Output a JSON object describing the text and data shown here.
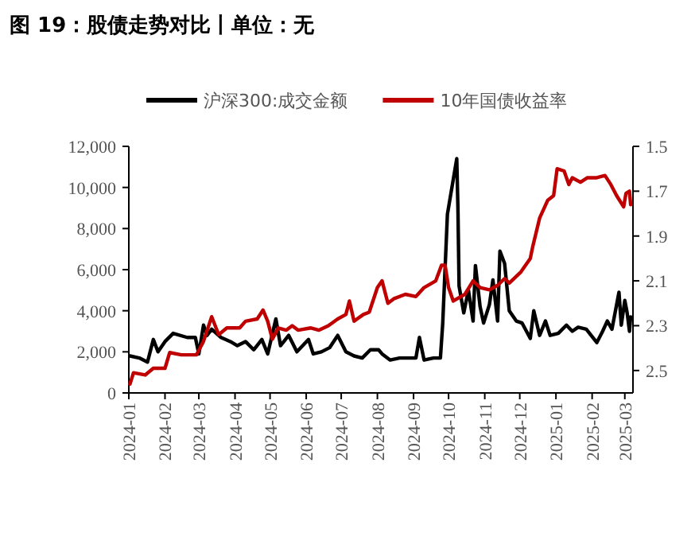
{
  "chart_data": {
    "type": "line",
    "title": "图 19：股债走势对比丨单位：无",
    "legend": "top",
    "grid": false,
    "xlim": [
      "2024-01-01",
      "2025-03-08"
    ],
    "xticks": [
      "2024-01",
      "2024-02",
      "2024-03",
      "2024-04",
      "2024-05",
      "2024-06",
      "2024-07",
      "2024-08",
      "2024-09",
      "2024-10",
      "2024-11",
      "2024-12",
      "2025-01",
      "2025-02",
      "2025-03"
    ],
    "ylim": [
      0,
      12000
    ],
    "yticks": [
      0,
      {
        "value": 2000,
        "label": "2,000"
      },
      {
        "value": 4000,
        "label": "4,000"
      },
      {
        "value": 6000,
        "label": "6,000"
      },
      {
        "value": 8000,
        "label": "8,000"
      },
      {
        "value": 10000,
        "label": "10,000"
      },
      {
        "value": 12000,
        "label": "12,000"
      }
    ],
    "y2lim": [
      2.6,
      1.5
    ],
    "y2ticks": [
      1.5,
      1.7,
      1.9,
      2.1,
      2.3,
      2.5
    ],
    "series": [
      {
        "name": "沪深300:成交金额",
        "color": "#000000",
        "x": [
          "2024-01-02",
          "2024-01-10",
          "2024-01-17",
          "2024-01-22",
          "2024-01-26",
          "2024-02-01",
          "2024-02-08",
          "2024-02-20",
          "2024-02-27",
          "2024-03-01",
          "2024-03-05",
          "2024-03-08",
          "2024-03-12",
          "2024-03-20",
          "2024-03-28",
          "2024-04-03",
          "2024-04-10",
          "2024-04-17",
          "2024-04-24",
          "2024-04-29",
          "2024-05-06",
          "2024-05-10",
          "2024-05-17",
          "2024-05-24",
          "2024-06-03",
          "2024-06-07",
          "2024-06-14",
          "2024-06-21",
          "2024-06-28",
          "2024-07-05",
          "2024-07-12",
          "2024-07-19",
          "2024-07-26",
          "2024-08-02",
          "2024-08-05",
          "2024-08-12",
          "2024-08-20",
          "2024-08-28",
          "2024-09-03",
          "2024-09-06",
          "2024-09-10",
          "2024-09-18",
          "2024-09-24",
          "2024-09-26",
          "2024-09-30",
          "2024-10-08",
          "2024-10-09",
          "2024-10-10",
          "2024-10-14",
          "2024-10-18",
          "2024-10-22",
          "2024-10-24",
          "2024-10-28",
          "2024-10-31",
          "2024-11-05",
          "2024-11-08",
          "2024-11-12",
          "2024-11-14",
          "2024-11-18",
          "2024-11-22",
          "2024-11-28",
          "2024-12-03",
          "2024-12-10",
          "2024-12-13",
          "2024-12-18",
          "2024-12-23",
          "2024-12-27",
          "2025-01-03",
          "2025-01-10",
          "2025-01-15",
          "2025-01-20",
          "2025-01-27",
          "2025-02-05",
          "2025-02-10",
          "2025-02-14",
          "2025-02-18",
          "2025-02-24",
          "2025-02-26",
          "2025-03-01",
          "2025-03-03",
          "2025-03-05",
          "2025-03-06"
        ],
        "values": [
          1800,
          1700,
          1500,
          2600,
          2000,
          2500,
          2900,
          2700,
          2700,
          1900,
          3300,
          2800,
          3100,
          2700,
          2500,
          2300,
          2500,
          2100,
          2600,
          1900,
          3600,
          2300,
          2800,
          2000,
          2600,
          1900,
          2000,
          2200,
          2800,
          2000,
          1800,
          1700,
          2100,
          2100,
          1900,
          1600,
          1700,
          1700,
          1700,
          2700,
          1600,
          1700,
          1700,
          3400,
          8700,
          11400,
          9000,
          5200,
          3900,
          5000,
          3500,
          6200,
          4200,
          3400,
          4300,
          5500,
          3500,
          6900,
          6300,
          4000,
          3500,
          3400,
          2650,
          4000,
          2800,
          3500,
          2800,
          2900,
          3300,
          3000,
          3200,
          3100,
          2450,
          3000,
          3500,
          3100,
          4900,
          3300,
          4500,
          3900,
          3000,
          3700
        ]
      },
      {
        "name": "10年国债收益率",
        "color": "#c00000",
        "axis": "y2",
        "x": [
          "2024-01-02",
          "2024-01-05",
          "2024-01-15",
          "2024-01-22",
          "2024-02-01",
          "2024-02-05",
          "2024-02-15",
          "2024-02-28",
          "2024-03-05",
          "2024-03-12",
          "2024-03-18",
          "2024-03-25",
          "2024-04-05",
          "2024-04-10",
          "2024-04-20",
          "2024-04-25",
          "2024-04-29",
          "2024-05-03",
          "2024-05-08",
          "2024-05-15",
          "2024-05-20",
          "2024-05-25",
          "2024-06-05",
          "2024-06-12",
          "2024-06-20",
          "2024-06-28",
          "2024-07-05",
          "2024-07-08",
          "2024-07-12",
          "2024-07-20",
          "2024-07-25",
          "2024-08-01",
          "2024-08-05",
          "2024-08-10",
          "2024-08-15",
          "2024-08-25",
          "2024-09-03",
          "2024-09-10",
          "2024-09-20",
          "2024-09-25",
          "2024-09-28",
          "2024-10-01",
          "2024-10-05",
          "2024-10-15",
          "2024-10-22",
          "2024-10-28",
          "2024-11-05",
          "2024-11-12",
          "2024-11-18",
          "2024-11-22",
          "2024-12-02",
          "2024-12-10",
          "2024-12-12",
          "2024-12-18",
          "2024-12-25",
          "2024-12-30",
          "2025-01-02",
          "2025-01-08",
          "2025-01-12",
          "2025-01-15",
          "2025-01-22",
          "2025-01-28",
          "2025-02-05",
          "2025-02-12",
          "2025-02-17",
          "2025-02-22",
          "2025-02-28",
          "2025-03-02",
          "2025-03-05",
          "2025-03-06"
        ],
        "values": [
          2.56,
          2.51,
          2.52,
          2.49,
          2.49,
          2.42,
          2.43,
          2.43,
          2.37,
          2.26,
          2.34,
          2.31,
          2.31,
          2.28,
          2.27,
          2.23,
          2.28,
          2.36,
          2.31,
          2.32,
          2.3,
          2.32,
          2.31,
          2.32,
          2.3,
          2.27,
          2.25,
          2.19,
          2.28,
          2.25,
          2.24,
          2.13,
          2.1,
          2.2,
          2.18,
          2.16,
          2.17,
          2.13,
          2.1,
          2.03,
          2.03,
          2.13,
          2.19,
          2.16,
          2.1,
          2.13,
          2.14,
          2.12,
          2.09,
          2.11,
          2.06,
          2.0,
          1.95,
          1.82,
          1.74,
          1.72,
          1.6,
          1.61,
          1.67,
          1.64,
          1.66,
          1.64,
          1.64,
          1.63,
          1.67,
          1.72,
          1.77,
          1.71,
          1.7,
          1.76
        ]
      }
    ]
  }
}
